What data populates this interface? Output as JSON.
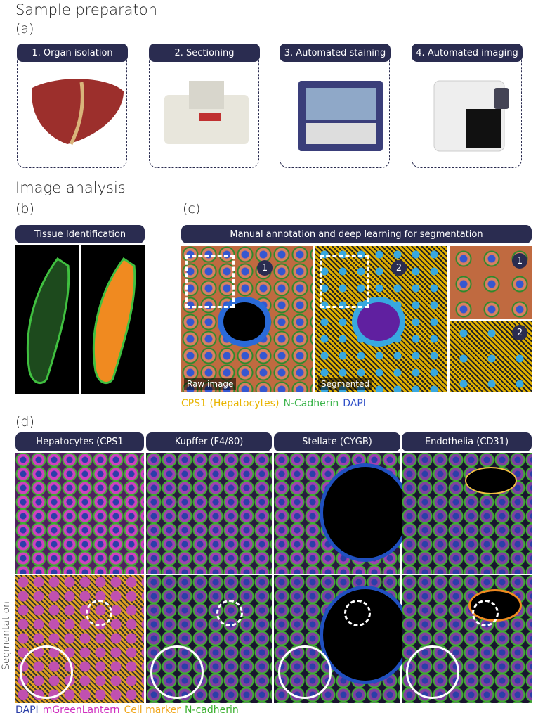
{
  "header": {
    "title": "Sample preparaton",
    "label": "(a)"
  },
  "steps": [
    "1. Organ isolation",
    "2. Sectioning",
    "3. Automated staining",
    "4. Automated imaging"
  ],
  "section": {
    "title": "Image analysis"
  },
  "panel_b": {
    "label": "(b)",
    "title": "Tissue Identification"
  },
  "panel_c": {
    "label": "(c)",
    "title": "Manual annotation and deep learning for segmentation",
    "images": [
      "Raw image",
      "Segmented"
    ],
    "markers": [
      "1",
      "2"
    ],
    "legend": [
      {
        "text": "CPS1 (Hepatocytes)",
        "color": "#e8b400"
      },
      {
        "text": "N-Cadherin",
        "color": "#3cb44b"
      },
      {
        "text": "DAPI",
        "color": "#3050c8"
      }
    ]
  },
  "panel_d": {
    "label": "(d)",
    "columns": [
      "Hepatocytes (CPS1",
      "Kupffer (F4/80)",
      "Stellate (CYGB)",
      "Endothelia (CD31)"
    ],
    "row_label": "Segmentation",
    "legend": [
      {
        "text": "DAPI",
        "color": "#2b3fa8"
      },
      {
        "text": "mGreenLantern",
        "color": "#d030c0"
      },
      {
        "text": "Cell marker",
        "color": "#f0a820"
      },
      {
        "text": "N-cadherin",
        "color": "#3cb030"
      }
    ]
  }
}
